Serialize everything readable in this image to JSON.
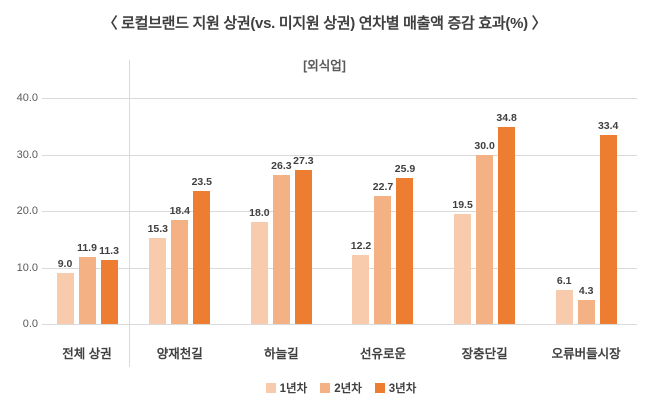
{
  "title": "〈 로컬브랜드 지원 상권(vs. 미지원 상권) 연차별 매출액 증감 효과(%) 〉",
  "subtitle": "[외식업]",
  "colors": {
    "series1": "#F8CBAD",
    "series2": "#F4B183",
    "series3": "#ED7D31",
    "gridline": "#D9D9D9",
    "axis_label": "#595959",
    "text": "#404040"
  },
  "chart_data": {
    "type": "bar",
    "title": "〈 로컬브랜드 지원 상권(vs. 미지원 상권) 연차별 매출액 증감 효과(%) 〉",
    "subtitle": "[외식업]",
    "categories": [
      "전체 상권",
      "양재천길",
      "하늘길",
      "선유로운",
      "장충단길",
      "오류버들시장"
    ],
    "series": [
      {
        "name": "1년차",
        "color": "#F8CBAD",
        "values": [
          9.0,
          15.3,
          18.0,
          12.2,
          19.5,
          6.1
        ]
      },
      {
        "name": "2년차",
        "color": "#F4B183",
        "values": [
          11.9,
          18.4,
          26.3,
          22.7,
          30.0,
          4.3
        ]
      },
      {
        "name": "3년차",
        "color": "#ED7D31",
        "values": [
          11.3,
          23.5,
          27.3,
          25.9,
          34.8,
          33.4
        ]
      }
    ],
    "ylim": [
      0,
      40
    ],
    "y_ticks": [
      "0.0",
      "10.0",
      "20.0",
      "30.0",
      "40.0"
    ],
    "grid": true,
    "legend_position": "bottom",
    "data_labels": true,
    "separator_after_category": "전체 상권"
  }
}
